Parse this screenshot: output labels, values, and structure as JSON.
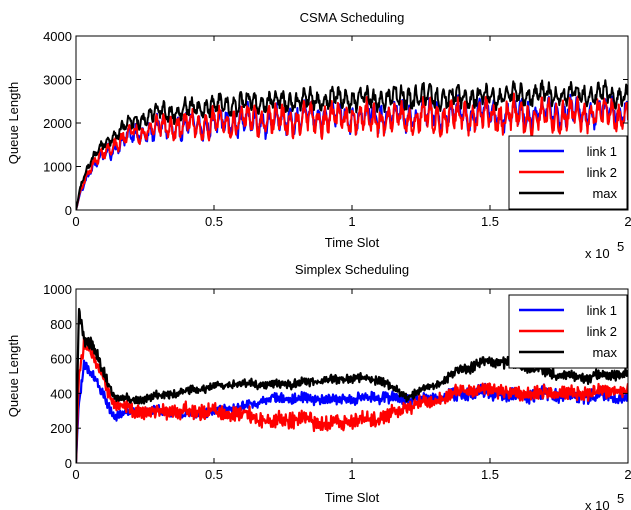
{
  "chart_data": [
    {
      "type": "line",
      "title": "CSMA Scheduling",
      "xlabel": "Time Slot",
      "ylabel": "Queue Length",
      "x_multiplier": "x 10",
      "x_multiplier_exp": "5",
      "xlim": [
        0,
        2
      ],
      "ylim": [
        0,
        4000
      ],
      "xticks": [
        "0",
        "0.5",
        "1",
        "1.5",
        "2"
      ],
      "yticks": [
        "0",
        "1000",
        "2000",
        "3000",
        "4000"
      ],
      "grid": false,
      "legend_position": "bottom-right",
      "series": [
        {
          "name": "link 1",
          "color": "#0000ff",
          "x": [
            0,
            0.02,
            0.05,
            0.1,
            0.15,
            0.2,
            0.25,
            0.3,
            0.4,
            0.5,
            0.6,
            0.7,
            0.8,
            0.9,
            1.0,
            1.1,
            1.2,
            1.3,
            1.4,
            1.5,
            1.6,
            1.7,
            1.8,
            1.9,
            2.0
          ],
          "values": [
            0,
            500,
            900,
            1250,
            1500,
            1700,
            1800,
            1850,
            1900,
            2000,
            2050,
            2050,
            2100,
            2150,
            2150,
            2150,
            2150,
            2200,
            2200,
            2200,
            2200,
            2250,
            2250,
            2250,
            2300
          ],
          "amplitude": [
            0,
            80,
            120,
            180,
            220,
            250,
            280,
            300,
            320,
            330,
            330,
            330,
            340,
            340,
            340,
            350,
            350,
            350,
            350,
            350,
            350,
            350,
            350,
            350,
            350
          ]
        },
        {
          "name": "link 2",
          "color": "#ff0000",
          "x": [
            0,
            0.02,
            0.05,
            0.1,
            0.15,
            0.2,
            0.25,
            0.3,
            0.4,
            0.5,
            0.6,
            0.7,
            0.8,
            0.9,
            1.0,
            1.1,
            1.2,
            1.3,
            1.4,
            1.5,
            1.6,
            1.7,
            1.8,
            1.9,
            2.0
          ],
          "values": [
            0,
            550,
            950,
            1300,
            1550,
            1750,
            1850,
            1900,
            1950,
            2000,
            2050,
            2050,
            2050,
            2100,
            2100,
            2100,
            2100,
            2150,
            2150,
            2150,
            2150,
            2150,
            2200,
            2200,
            2200
          ],
          "amplitude": [
            0,
            80,
            120,
            180,
            220,
            250,
            280,
            300,
            320,
            350,
            360,
            360,
            370,
            380,
            380,
            390,
            390,
            400,
            400,
            400,
            400,
            400,
            400,
            400,
            400
          ]
        },
        {
          "name": "max",
          "color": "#000000",
          "x": [
            0,
            0.02,
            0.05,
            0.1,
            0.15,
            0.2,
            0.25,
            0.3,
            0.4,
            0.5,
            0.6,
            0.7,
            0.8,
            0.9,
            1.0,
            1.1,
            1.2,
            1.3,
            1.4,
            1.5,
            1.6,
            1.7,
            1.8,
            1.9,
            2.0
          ],
          "values": [
            0,
            650,
            1100,
            1500,
            1800,
            2000,
            2150,
            2250,
            2300,
            2400,
            2450,
            2500,
            2500,
            2550,
            2550,
            2550,
            2600,
            2600,
            2600,
            2600,
            2650,
            2650,
            2650,
            2650,
            2650
          ],
          "amplitude": [
            0,
            60,
            100,
            150,
            180,
            200,
            220,
            230,
            240,
            250,
            250,
            250,
            260,
            260,
            260,
            270,
            300,
            320,
            280,
            260,
            260,
            260,
            260,
            260,
            260
          ]
        }
      ]
    },
    {
      "type": "line",
      "title": "Simplex Scheduling",
      "xlabel": "Time Slot",
      "ylabel": "Queue Length",
      "x_multiplier": "x 10",
      "x_multiplier_exp": "5",
      "xlim": [
        0,
        2
      ],
      "ylim": [
        0,
        1000
      ],
      "xticks": [
        "0",
        "0.5",
        "1",
        "1.5",
        "2"
      ],
      "yticks": [
        "0",
        "200",
        "400",
        "600",
        "800",
        "1000"
      ],
      "grid": false,
      "legend_position": "top-right",
      "series": [
        {
          "name": "link 1",
          "color": "#0000ff",
          "x": [
            0,
            0.01,
            0.03,
            0.06,
            0.1,
            0.14,
            0.2,
            0.3,
            0.4,
            0.5,
            0.6,
            0.7,
            0.8,
            0.9,
            1.0,
            1.1,
            1.2,
            1.3,
            1.4,
            1.5,
            1.6,
            1.7,
            1.8,
            1.9,
            2.0
          ],
          "values": [
            0,
            350,
            570,
            500,
            380,
            270,
            290,
            300,
            270,
            300,
            320,
            370,
            370,
            360,
            370,
            380,
            370,
            370,
            400,
            410,
            380,
            400,
            380,
            390,
            380
          ],
          "amplitude": [
            0,
            20,
            30,
            30,
            25,
            20,
            20,
            20,
            20,
            20,
            20,
            25,
            25,
            25,
            25,
            25,
            25,
            25,
            30,
            30,
            30,
            30,
            30,
            30,
            30
          ]
        },
        {
          "name": "link 2",
          "color": "#ff0000",
          "x": [
            0,
            0.01,
            0.03,
            0.06,
            0.1,
            0.14,
            0.2,
            0.3,
            0.4,
            0.5,
            0.6,
            0.7,
            0.8,
            0.9,
            1.0,
            1.1,
            1.2,
            1.3,
            1.4,
            1.5,
            1.6,
            1.7,
            1.8,
            1.9,
            2.0
          ],
          "values": [
            0,
            500,
            700,
            620,
            470,
            340,
            300,
            300,
            300,
            290,
            280,
            240,
            250,
            230,
            240,
            250,
            330,
            360,
            420,
            420,
            400,
            400,
            400,
            410,
            420
          ],
          "amplitude": [
            0,
            20,
            30,
            30,
            30,
            25,
            30,
            35,
            35,
            35,
            35,
            35,
            35,
            35,
            35,
            35,
            30,
            30,
            30,
            30,
            30,
            30,
            30,
            30,
            30
          ]
        },
        {
          "name": "max",
          "color": "#000000",
          "x": [
            0,
            0.01,
            0.03,
            0.06,
            0.1,
            0.14,
            0.2,
            0.3,
            0.4,
            0.5,
            0.6,
            0.7,
            0.8,
            0.9,
            1.0,
            1.1,
            1.2,
            1.3,
            1.4,
            1.5,
            1.6,
            1.7,
            1.8,
            1.9,
            2.0
          ],
          "values": [
            0,
            880,
            720,
            680,
            520,
            380,
            360,
            390,
            410,
            440,
            460,
            450,
            460,
            470,
            490,
            480,
            380,
            450,
            540,
            590,
            560,
            530,
            490,
            500,
            510
          ],
          "amplitude": [
            0,
            20,
            30,
            30,
            25,
            20,
            20,
            20,
            20,
            20,
            20,
            20,
            20,
            20,
            20,
            20,
            20,
            20,
            25,
            25,
            25,
            25,
            25,
            25,
            25
          ]
        }
      ]
    }
  ]
}
